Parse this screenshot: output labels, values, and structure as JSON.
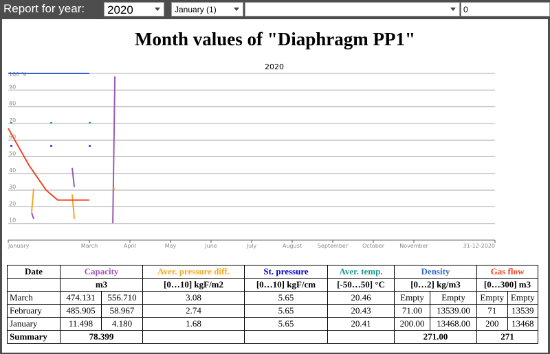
{
  "topbar": {
    "report_label": "Report for year:",
    "year": "2020",
    "month": "January (1)",
    "filter": "",
    "value": "0"
  },
  "page_title": "Month values of \"Diaphragm PP1\"",
  "chart_data": {
    "type": "line",
    "title": "2020",
    "y_top_label": "100 %",
    "yticks": [
      "90",
      "80",
      "70",
      "60",
      "50",
      "40",
      "30",
      "20",
      "10"
    ],
    "ylim": [
      0,
      100
    ],
    "xticks": [
      "January",
      "March",
      "April",
      "May",
      "June",
      "July",
      "August",
      "September",
      "October",
      "November",
      "31-12-2020"
    ],
    "grid": true,
    "series": [
      {
        "name": "Capacity",
        "color": "#9b59b6",
        "values_start": [
          16.5,
          43.3,
          10.2
        ],
        "values_end": [
          12.8,
          31.8,
          98.2
        ]
      },
      {
        "name": "Aver. pressure diff.",
        "color": "#f5a623",
        "values_start": [
          16.8,
          27.4,
          30.8
        ],
        "values_end": [
          30.8,
          12.8,
          30.8
        ]
      },
      {
        "name": "St. pressure",
        "color": "#0000cc",
        "values_start": [
          56.5,
          56.5,
          56.5
        ],
        "values_end": [
          56.5,
          56.5,
          56.5
        ]
      },
      {
        "name": "Aver. temp.",
        "color": "#1a9a8a",
        "values_start": [
          70.4,
          70.4,
          70.4
        ],
        "values_end": [
          70.4,
          70.4,
          70.4
        ]
      },
      {
        "name": "Density",
        "color": "#3366cc",
        "values_start": [
          100,
          100,
          100
        ],
        "values_end": [
          100,
          100,
          100
        ]
      },
      {
        "name": "Gas flow",
        "color": "#ee4422",
        "values_start": [
          67,
          24,
          24
        ],
        "values_end": [
          24,
          24,
          24
        ]
      }
    ]
  },
  "table": {
    "headers": [
      "Date",
      "Capacity",
      "Aver. pressure diff.",
      "St. pressure",
      "Aver. temp.",
      "Density",
      "Gas flow"
    ],
    "header_colors": [
      "#000000",
      "#9b59b6",
      "#f5a623",
      "#0000cc",
      "#1a9a8a",
      "#3366cc",
      "#ee4422"
    ],
    "units": [
      "",
      "m3",
      "[0…10] kgF/m2",
      "[0…10] kgF/cm",
      "[-50…50] °C",
      "[0…2] kg/m3",
      "[0…300] m3"
    ],
    "rows": [
      {
        "date": "March",
        "cap1": "474.131",
        "cap2": "556.710",
        "pd": "3.08",
        "sp": "5.65",
        "temp": "20.46",
        "den1": "Empty",
        "den2": "Empty",
        "gf1": "Empty",
        "gf2": "Empty"
      },
      {
        "date": "February",
        "cap1": "485.905",
        "cap2": "58.967",
        "pd": "2.74",
        "sp": "5.65",
        "temp": "20.43",
        "den1": "71.00",
        "den2": "13539.00",
        "gf1": "71",
        "gf2": "13539"
      },
      {
        "date": "January",
        "cap1": "11.498",
        "cap2": "4.180",
        "pd": "1.68",
        "sp": "5.65",
        "temp": "20.41",
        "den1": "200.00",
        "den2": "13468.00",
        "gf1": "200",
        "gf2": "13468"
      }
    ],
    "summary": {
      "label": "Summary",
      "capacity": "78.399",
      "pd": "",
      "sp": "",
      "temp": "",
      "density": "271.00",
      "gasflow": "271"
    }
  }
}
